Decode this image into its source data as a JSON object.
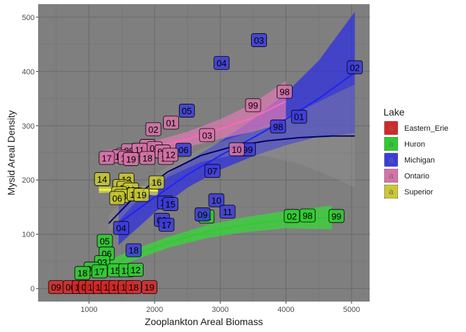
{
  "chart_data": {
    "type": "scatter",
    "xlabel": "Zooplankton Areal Biomass",
    "ylabel": "Mysid Areal Density",
    "xlim": [
      225,
      5275
    ],
    "ylim": [
      -24,
      524
    ],
    "x_ticks": [
      1000,
      2000,
      3000,
      4000,
      5000
    ],
    "y_ticks": [
      0,
      100,
      200,
      300,
      400,
      500
    ],
    "grid": true,
    "panel_background": "#7f7f7f",
    "legend": {
      "title": "Lake",
      "placement": "right"
    },
    "series": [
      {
        "name": "Eastern_Erie",
        "color": "#d62728",
        "points": [
          {
            "x": 500,
            "y": 2,
            "label": "09"
          },
          {
            "x": 720,
            "y": 2,
            "label": "00"
          },
          {
            "x": 860,
            "y": 2,
            "label": "16"
          },
          {
            "x": 960,
            "y": 2,
            "label": "08"
          },
          {
            "x": 1060,
            "y": 2,
            "label": "14"
          },
          {
            "x": 1180,
            "y": 2,
            "label": "17"
          },
          {
            "x": 1300,
            "y": 2,
            "label": "12"
          },
          {
            "x": 1420,
            "y": 2,
            "label": "10"
          },
          {
            "x": 1560,
            "y": 2,
            "label": "11"
          },
          {
            "x": 1680,
            "y": 2,
            "label": "18"
          },
          {
            "x": 1920,
            "y": 2,
            "label": "19"
          }
        ]
      },
      {
        "name": "Huron",
        "color": "#2ecc2e",
        "points": [
          {
            "x": 1240,
            "y": 87,
            "label": "05"
          },
          {
            "x": 1270,
            "y": 64,
            "label": "06"
          },
          {
            "x": 1200,
            "y": 48,
            "label": "03"
          },
          {
            "x": 1040,
            "y": 36,
            "label": "01"
          },
          {
            "x": 900,
            "y": 28,
            "label": "18"
          },
          {
            "x": 1160,
            "y": 31,
            "label": "17"
          },
          {
            "x": 1400,
            "y": 33,
            "label": "15"
          },
          {
            "x": 1570,
            "y": 33,
            "label": "13"
          },
          {
            "x": 1710,
            "y": 34,
            "label": "12"
          },
          {
            "x": 2790,
            "y": 132,
            "label": "01"
          },
          {
            "x": 4090,
            "y": 133,
            "label": "02"
          },
          {
            "x": 4330,
            "y": 134,
            "label": "98"
          },
          {
            "x": 4770,
            "y": 133,
            "label": "99"
          }
        ]
      },
      {
        "name": "Michigan",
        "color": "#3b3bdc",
        "points": [
          {
            "x": 3590,
            "y": 457,
            "label": "03"
          },
          {
            "x": 3020,
            "y": 415,
            "label": "04"
          },
          {
            "x": 5050,
            "y": 407,
            "label": "02"
          },
          {
            "x": 2490,
            "y": 327,
            "label": "05"
          },
          {
            "x": 4200,
            "y": 316,
            "label": "01"
          },
          {
            "x": 3880,
            "y": 298,
            "label": "98"
          },
          {
            "x": 2440,
            "y": 255,
            "label": "06"
          },
          {
            "x": 3420,
            "y": 256,
            "label": "99"
          },
          {
            "x": 2880,
            "y": 216,
            "label": "07"
          },
          {
            "x": 2160,
            "y": 158,
            "label": "16"
          },
          {
            "x": 2240,
            "y": 155,
            "label": "15"
          },
          {
            "x": 2940,
            "y": 162,
            "label": "10"
          },
          {
            "x": 3110,
            "y": 141,
            "label": "11"
          },
          {
            "x": 2730,
            "y": 136,
            "label": "09"
          },
          {
            "x": 2110,
            "y": 126,
            "label": "03"
          },
          {
            "x": 2180,
            "y": 117,
            "label": "17"
          },
          {
            "x": 1490,
            "y": 111,
            "label": "04"
          },
          {
            "x": 1680,
            "y": 70,
            "label": "18"
          }
        ]
      },
      {
        "name": "Ontario",
        "color": "#d673a8",
        "points": [
          {
            "x": 3980,
            "y": 362,
            "label": "98"
          },
          {
            "x": 3500,
            "y": 337,
            "label": "99"
          },
          {
            "x": 2250,
            "y": 305,
            "label": "01"
          },
          {
            "x": 1980,
            "y": 293,
            "label": "02"
          },
          {
            "x": 2800,
            "y": 282,
            "label": "03"
          },
          {
            "x": 3250,
            "y": 256,
            "label": "10"
          },
          {
            "x": 1890,
            "y": 262,
            "label": "05"
          },
          {
            "x": 2000,
            "y": 258,
            "label": "06"
          },
          {
            "x": 2120,
            "y": 252,
            "label": "07"
          },
          {
            "x": 1530,
            "y": 246,
            "label": "08"
          },
          {
            "x": 1610,
            "y": 254,
            "label": "09"
          },
          {
            "x": 1770,
            "y": 255,
            "label": "11"
          },
          {
            "x": 1470,
            "y": 243,
            "label": "14"
          },
          {
            "x": 1560,
            "y": 240,
            "label": "13"
          },
          {
            "x": 1640,
            "y": 238,
            "label": "19"
          },
          {
            "x": 1890,
            "y": 240,
            "label": "18"
          },
          {
            "x": 2170,
            "y": 240,
            "label": "16"
          },
          {
            "x": 1270,
            "y": 240,
            "label": "17"
          },
          {
            "x": 2240,
            "y": 246,
            "label": "12"
          }
        ]
      },
      {
        "name": "Superior",
        "color": "#c9c934",
        "points": [
          {
            "x": 1200,
            "y": 201,
            "label": "14"
          },
          {
            "x": 1570,
            "y": 200,
            "label": "13"
          },
          {
            "x": 2030,
            "y": 195,
            "label": "16"
          },
          {
            "x": 1480,
            "y": 188,
            "label": "17"
          },
          {
            "x": 1540,
            "y": 185,
            "label": "12"
          },
          {
            "x": 1640,
            "y": 182,
            "label": "11"
          },
          {
            "x": 1460,
            "y": 175,
            "label": "15"
          },
          {
            "x": 1500,
            "y": 170,
            "label": "18"
          },
          {
            "x": 1700,
            "y": 173,
            "label": "10"
          },
          {
            "x": 1800,
            "y": 172,
            "label": "19"
          },
          {
            "x": 1430,
            "y": 166,
            "label": "06"
          }
        ]
      }
    ],
    "fits": [
      {
        "lake": "Huron",
        "color": "#2ecc2e",
        "x": [
          1200,
          1600,
          2200,
          2800,
          3400,
          4000,
          4700
        ],
        "y": [
          35,
          58,
          85,
          105,
          118,
          127,
          131
        ],
        "ci": [
          12,
          10,
          10,
          12,
          14,
          16,
          22
        ]
      },
      {
        "lake": "Michigan",
        "color": "#2020ff",
        "x": [
          1450,
          2000,
          2500,
          3000,
          3500,
          4000,
          4500,
          5050
        ],
        "y": [
          120,
          168,
          210,
          245,
          278,
          312,
          350,
          398
        ],
        "ci": [
          40,
          28,
          24,
          26,
          34,
          48,
          70,
          112
        ]
      },
      {
        "lake": "Ontario",
        "color": "#ff66c0",
        "x": [
          1200,
          1600,
          2000,
          2500,
          3000,
          3500,
          4000
        ],
        "y": [
          242,
          250,
          260,
          275,
          294,
          315,
          345
        ],
        "ci": [
          12,
          10,
          12,
          14,
          18,
          26,
          38
        ]
      },
      {
        "lake": "Superior",
        "color": "#ffff33",
        "x": [
          1150,
          1350,
          1550,
          1750,
          2050
        ],
        "y": [
          182,
          182,
          182,
          181,
          180
        ],
        "ci": [
          6,
          5,
          5,
          6,
          9
        ]
      },
      {
        "lake": "all",
        "color": "#000066",
        "x": [
          1300,
          1700,
          2200,
          2700,
          3200,
          3700,
          4200,
          4700,
          5050
        ],
        "y": [
          120,
          170,
          215,
          245,
          262,
          272,
          278,
          281,
          281
        ],
        "ci": [
          16,
          12,
          10,
          12,
          16,
          28,
          48,
          75,
          95
        ]
      }
    ]
  }
}
